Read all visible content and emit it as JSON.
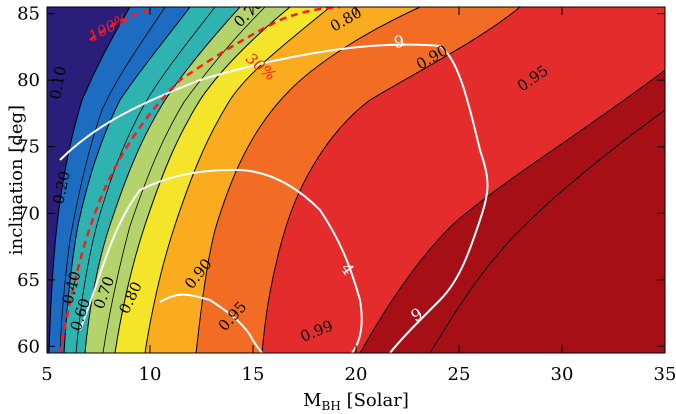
{
  "chart_data": {
    "type": "heatmap",
    "title": "",
    "xlabel_main": "M",
    "xlabel_sub": "BH",
    "xlabel_rest": " [Solar]",
    "ylabel": "inclination [deg]",
    "xlim": [
      5,
      35
    ],
    "ylim": [
      59.5,
      85.5
    ],
    "x_ticks": [
      5,
      10,
      15,
      20,
      25,
      30,
      35
    ],
    "y_ticks": [
      60,
      65,
      70,
      75,
      80,
      85
    ],
    "colors": {
      "dark_red": "#a50f15",
      "red": "#e32b2b",
      "orange_red": "#f06a28",
      "orange": "#f8a61b",
      "yellow": "#f5e628",
      "yellow_green": "#b7d56a",
      "teal": "#2ab0b0",
      "blue": "#1e6ec2",
      "navy": "#2b1e7a",
      "white_contour": "#ffffff",
      "red_dashed": "#ff1a1a"
    },
    "filled_contours": [
      {
        "level": "0.99",
        "color": "#a50f15"
      },
      {
        "level": "0.95",
        "color": "#e52c2c"
      },
      {
        "level": "0.90",
        "color": "#f36c24"
      },
      {
        "level": "0.80",
        "color": "#fbab1e"
      },
      {
        "level": "0.70",
        "color": "#f4e42a"
      },
      {
        "level": "0.60",
        "color": "#b4d46b"
      },
      {
        "level": "0.40",
        "color": "#2fb3b0"
      },
      {
        "level": "0.20",
        "color": "#1c6cc2"
      }
    ],
    "contour_labels": [
      "0.99",
      "0.95",
      "0.90",
      "0.80",
      "0.70",
      "0.60",
      "0.40",
      "0.20",
      "0.10"
    ],
    "white_contour_labels": [
      "9",
      "4",
      "9"
    ],
    "red_dashed_labels": [
      "100%",
      "30%"
    ]
  }
}
